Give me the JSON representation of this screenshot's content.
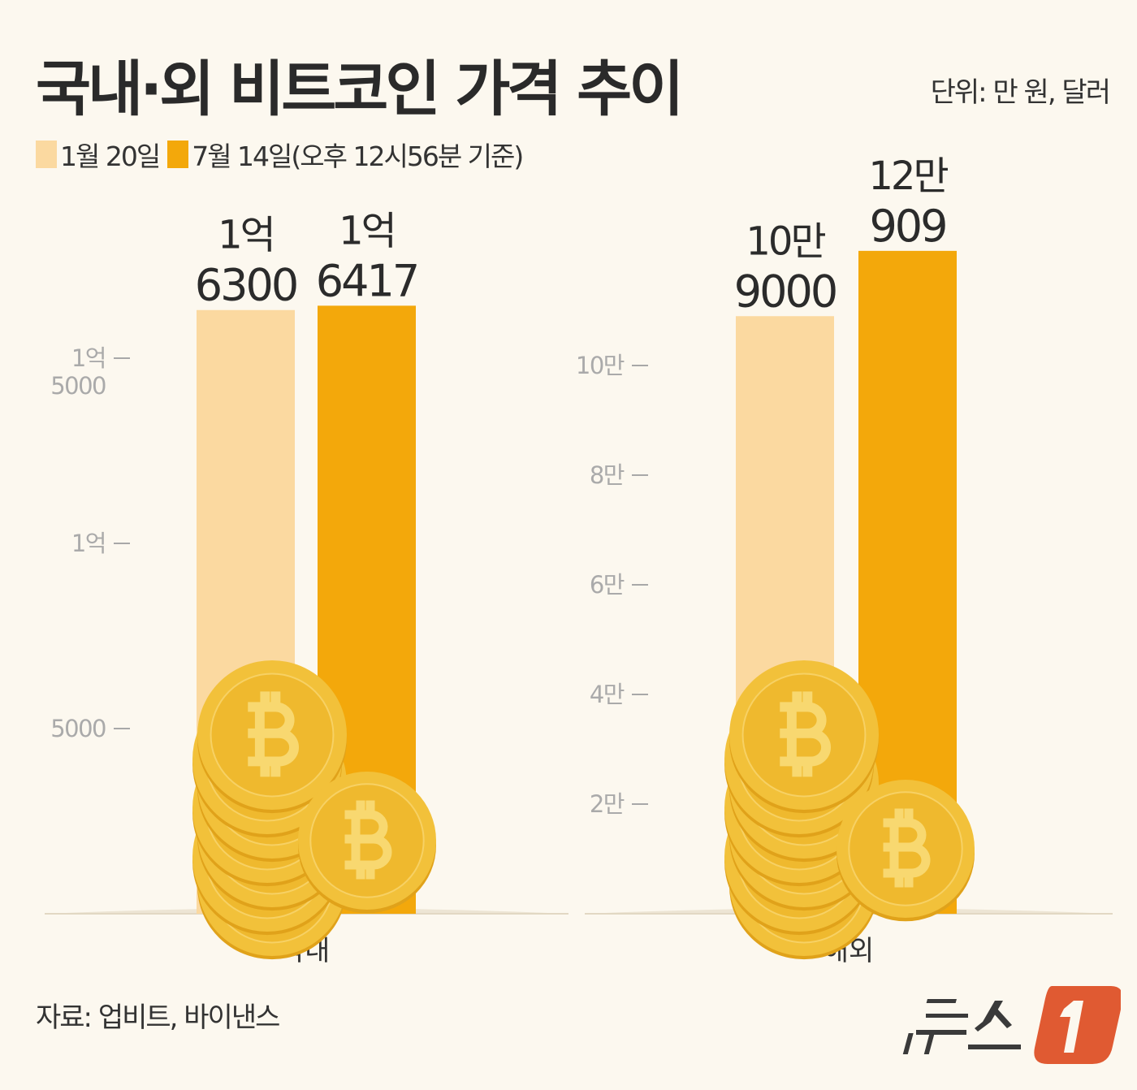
{
  "title": "국내·외 비트코인 가격 추이",
  "unit_note": "단위: 만 원, 달러",
  "source": "자료: 업비트, 바이낸스",
  "logo_text": "뉴스1",
  "colors": {
    "jan20": "#fbd9a0",
    "jul14": "#f3a80b",
    "background": "#fcf8ef",
    "logo_red": "#e05a32"
  },
  "chart_data": [
    {
      "type": "bar",
      "category": "국내",
      "unit": "만 원",
      "ylim": [
        0,
        17000
      ],
      "yticks": [
        {
          "value": 5000,
          "label": [
            "5000"
          ]
        },
        {
          "value": 10000,
          "label": [
            "1억"
          ]
        },
        {
          "value": 15000,
          "label": [
            "1억",
            "5000"
          ]
        }
      ],
      "series": [
        {
          "name": "1월 20일",
          "value": 16300,
          "label": [
            "1억",
            "6300"
          ]
        },
        {
          "name": "7월 14일(오후 12시56분 기준)",
          "value": 16417,
          "label": [
            "1억",
            "6417"
          ]
        }
      ]
    },
    {
      "type": "bar",
      "category": "해외",
      "unit": "달러",
      "ylim": [
        0,
        125000
      ],
      "yticks": [
        {
          "value": 20000,
          "label": [
            "2만"
          ]
        },
        {
          "value": 40000,
          "label": [
            "4만"
          ]
        },
        {
          "value": 60000,
          "label": [
            "6만"
          ]
        },
        {
          "value": 80000,
          "label": [
            "8만"
          ]
        },
        {
          "value": 100000,
          "label": [
            "10만"
          ]
        }
      ],
      "series": [
        {
          "name": "1월 20일",
          "value": 109000,
          "label": [
            "10만",
            "9000"
          ]
        },
        {
          "name": "7월 14일(오후 12시56분 기준)",
          "value": 120909,
          "label": [
            "12만",
            "909"
          ]
        }
      ]
    }
  ]
}
